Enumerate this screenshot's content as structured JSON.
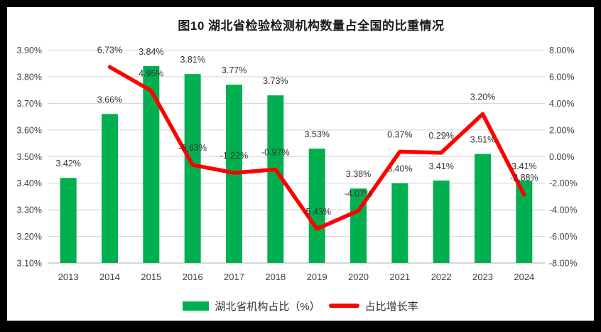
{
  "title": "图10 湖北省检验检测机构数量占全国的比重情况",
  "colors": {
    "bar": "#00B050",
    "line": "#FF0000",
    "grid": "#D9D9D9",
    "axis_line": "#BFBFBF",
    "axis_text": "#404040",
    "label_text": "#333333",
    "frame": "#000000",
    "background": "#FFFFFF"
  },
  "legend": {
    "items": [
      {
        "label": "湖北省机构占比（%）",
        "marker": "bar-swatch",
        "color": "#00B050"
      },
      {
        "label": "占比增长率",
        "marker": "line-swatch",
        "color": "#FF0000"
      }
    ]
  },
  "chart_data": {
    "type": "bar+line",
    "categories": [
      "2013",
      "2014",
      "2015",
      "2016",
      "2017",
      "2018",
      "2019",
      "2020",
      "2021",
      "2022",
      "2023",
      "2024"
    ],
    "series": [
      {
        "name": "湖北省机构占比（%）",
        "type": "bar",
        "axis": "left",
        "color": "#00B050",
        "values": [
          3.42,
          3.66,
          3.84,
          3.81,
          3.77,
          3.73,
          3.53,
          3.38,
          3.4,
          3.41,
          3.51,
          3.41
        ],
        "labels": [
          "3.42%",
          "3.66%",
          "3.84%",
          "3.81%",
          "3.77%",
          "3.73%",
          "3.53%",
          "3.38%",
          "3.40%",
          "3.41%",
          "3.51%",
          "3.41%"
        ]
      },
      {
        "name": "占比增长率",
        "type": "line",
        "axis": "right",
        "color": "#FF0000",
        "values": [
          null,
          6.73,
          4.95,
          -0.63,
          -1.22,
          -0.97,
          -5.43,
          -4.07,
          0.37,
          0.29,
          3.2,
          -2.88
        ],
        "labels": [
          null,
          "6.73%",
          "4.95%",
          "-0.63%",
          "-1.22%",
          "-0.97%",
          "-5.43%",
          "-4.07%",
          "0.37%",
          "0.29%",
          "3.20%",
          "-2.88%"
        ]
      }
    ],
    "left_axis": {
      "min": 3.1,
      "max": 3.9,
      "step": 0.1,
      "tick_values": [
        3.1,
        3.2,
        3.3,
        3.4,
        3.5,
        3.6,
        3.7,
        3.8,
        3.9
      ],
      "tick_labels": [
        "3.10%",
        "3.20%",
        "3.30%",
        "3.40%",
        "3.50%",
        "3.60%",
        "3.70%",
        "3.80%",
        "3.90%"
      ]
    },
    "right_axis": {
      "min": -8,
      "max": 8,
      "step": 2,
      "tick_values": [
        -8,
        -6,
        -4,
        -2,
        0,
        2,
        4,
        6,
        8
      ],
      "tick_labels": [
        "-8.00%",
        "-6.00%",
        "-4.00%",
        "-2.00%",
        "0.00%",
        "2.00%",
        "4.00%",
        "6.00%",
        "8.00%"
      ]
    },
    "grid": true,
    "legend_position": "bottom"
  }
}
